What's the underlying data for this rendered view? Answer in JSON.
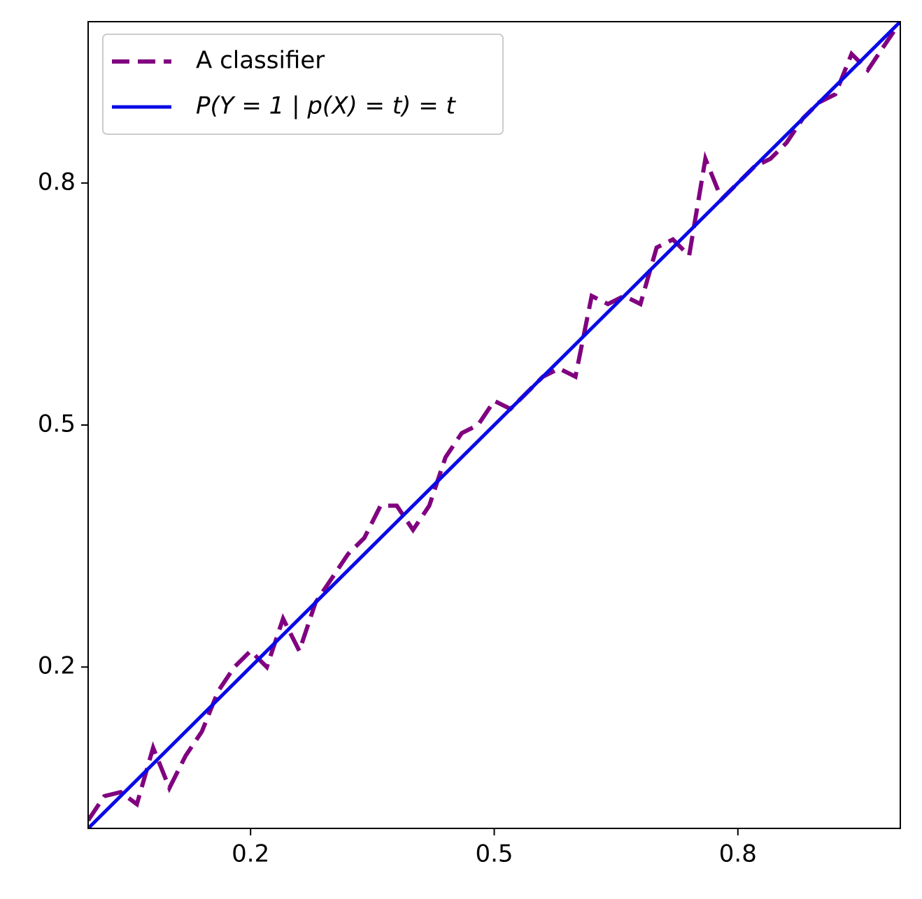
{
  "chart_data": {
    "type": "line",
    "xlim": [
      0,
      1
    ],
    "ylim": [
      0,
      1
    ],
    "xticks": [
      0.2,
      0.5,
      0.8
    ],
    "yticks": [
      0.2,
      0.5,
      0.8
    ],
    "legend": "upper left",
    "series": [
      {
        "name": "A classifier",
        "color": "#800080",
        "style": "dashed",
        "x": [
          0,
          0.02,
          0.04,
          0.06,
          0.08,
          0.1,
          0.12,
          0.14,
          0.16,
          0.18,
          0.2,
          0.22,
          0.24,
          0.26,
          0.28,
          0.3,
          0.32,
          0.34,
          0.36,
          0.38,
          0.4,
          0.42,
          0.44,
          0.46,
          0.48,
          0.5,
          0.52,
          0.54,
          0.56,
          0.58,
          0.6,
          0.62,
          0.64,
          0.66,
          0.68,
          0.7,
          0.72,
          0.74,
          0.76,
          0.78,
          0.8,
          0.82,
          0.84,
          0.86,
          0.88,
          0.9,
          0.92,
          0.94,
          0.96,
          0.98,
          1
        ],
        "values": [
          0.01,
          0.04,
          0.045,
          0.03,
          0.1,
          0.05,
          0.09,
          0.12,
          0.17,
          0.2,
          0.22,
          0.2,
          0.26,
          0.22,
          0.28,
          0.31,
          0.34,
          0.36,
          0.4,
          0.4,
          0.37,
          0.4,
          0.46,
          0.49,
          0.5,
          0.53,
          0.52,
          0.54,
          0.56,
          0.57,
          0.56,
          0.66,
          0.65,
          0.66,
          0.65,
          0.72,
          0.73,
          0.71,
          0.83,
          0.78,
          0.8,
          0.82,
          0.83,
          0.85,
          0.88,
          0.9,
          0.91,
          0.96,
          0.94,
          0.97,
          1
        ]
      },
      {
        "name": "P(Y = 1 | p(X) = t) = t",
        "color": "#0a0ae6",
        "style": "solid",
        "x": [
          0,
          1
        ],
        "values": [
          0,
          1
        ]
      }
    ]
  }
}
